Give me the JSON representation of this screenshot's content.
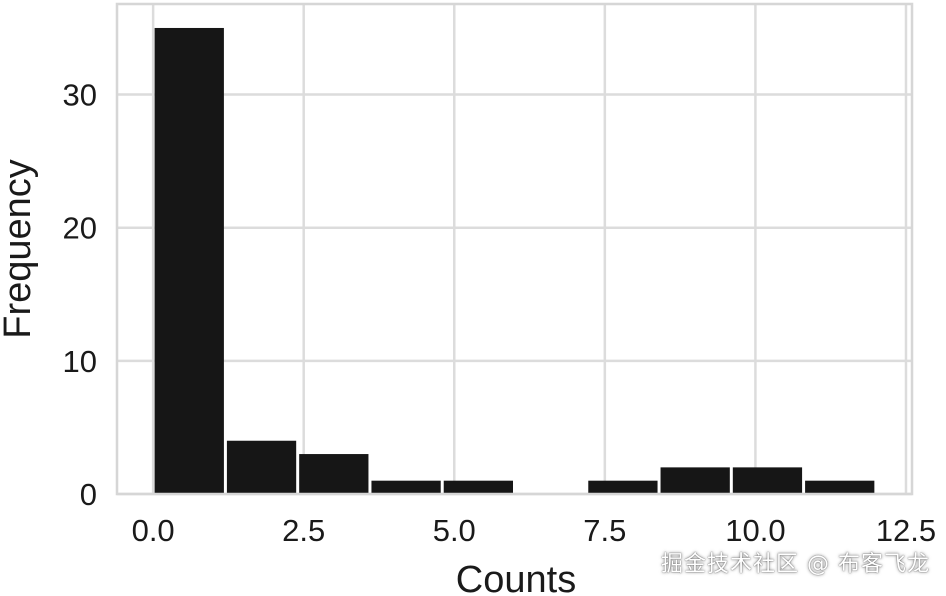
{
  "chart_data": {
    "type": "bar",
    "xlabel": "Counts",
    "ylabel": "Frequency",
    "xlim": [
      -0.6,
      12.6
    ],
    "ylim": [
      0,
      36.8
    ],
    "xticks": [
      0.0,
      2.5,
      5.0,
      7.5,
      10.0,
      12.5
    ],
    "xtick_labels": [
      "0.0",
      "2.5",
      "5.0",
      "7.5",
      "10.0",
      "12.5"
    ],
    "yticks": [
      0,
      10,
      20,
      30
    ],
    "ytick_labels": [
      "0",
      "10",
      "20",
      "30"
    ],
    "grid": true,
    "bar_color": "#161616",
    "bins": [
      {
        "x0": 0.0,
        "x1": 1.2,
        "value": 35
      },
      {
        "x0": 1.2,
        "x1": 2.4,
        "value": 4
      },
      {
        "x0": 2.4,
        "x1": 3.6,
        "value": 3
      },
      {
        "x0": 3.6,
        "x1": 4.8,
        "value": 1
      },
      {
        "x0": 4.8,
        "x1": 6.0,
        "value": 1
      },
      {
        "x0": 6.0,
        "x1": 7.2,
        "value": 0
      },
      {
        "x0": 7.2,
        "x1": 8.4,
        "value": 1
      },
      {
        "x0": 8.4,
        "x1": 9.6,
        "value": 2
      },
      {
        "x0": 9.6,
        "x1": 10.8,
        "value": 2
      },
      {
        "x0": 10.8,
        "x1": 12.0,
        "value": 1
      }
    ]
  },
  "watermark": "掘金技术社区 @ 布客飞龙"
}
